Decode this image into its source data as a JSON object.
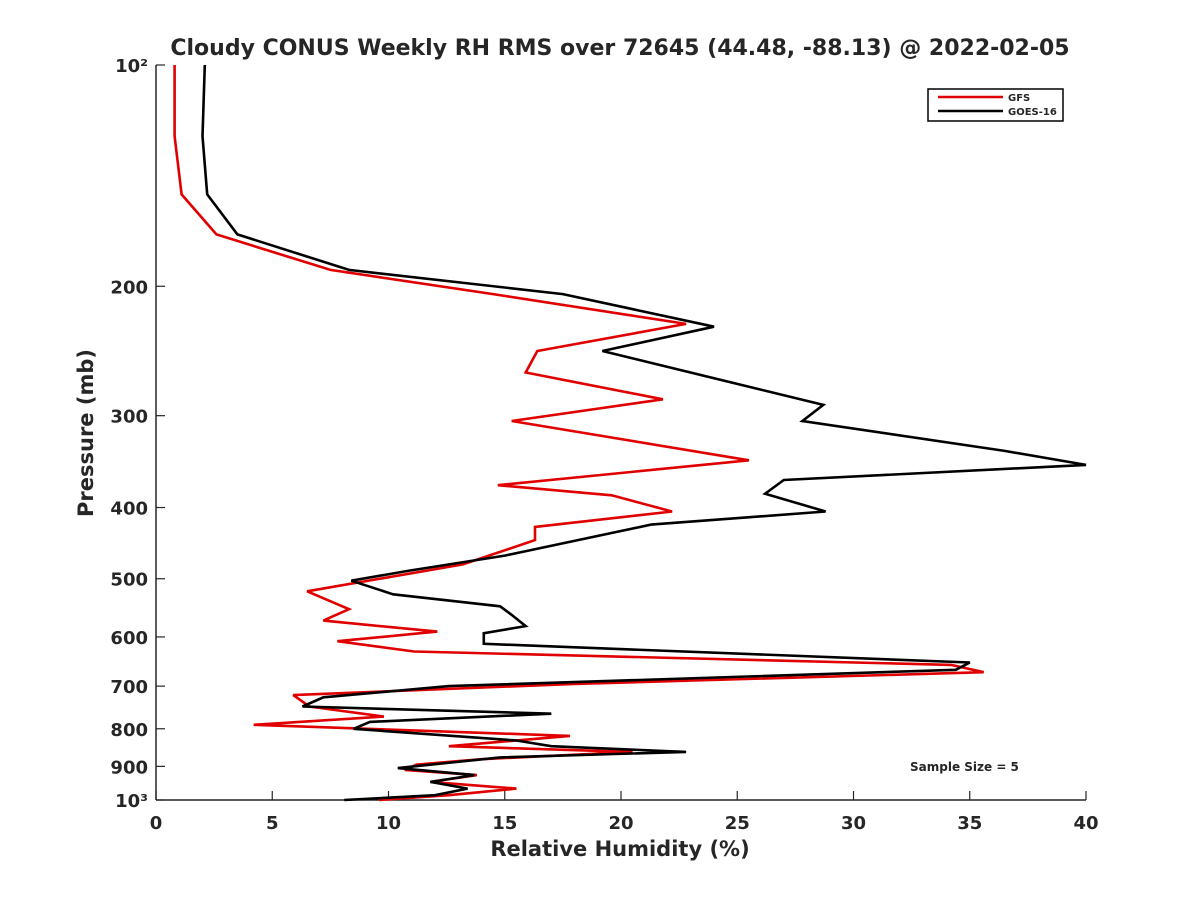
{
  "chart_data": {
    "type": "line",
    "title": "Cloudy CONUS Weekly RH RMS over 72645 (44.48, -88.13) @ 2022-02-05",
    "xlabel": "Relative Humidity (%)",
    "ylabel": "Pressure (mb)",
    "xlim": [
      0,
      40
    ],
    "ylim": [
      100,
      1000
    ],
    "y_scale": "log",
    "y_reversed": true,
    "x_ticks": [
      0,
      5,
      10,
      15,
      20,
      25,
      30,
      35,
      40
    ],
    "x_tick_labels": [
      "0",
      "5",
      "10",
      "15",
      "20",
      "25",
      "30",
      "35",
      "40"
    ],
    "y_ticks": [
      100,
      200,
      300,
      400,
      500,
      600,
      700,
      800,
      900,
      1000
    ],
    "y_tick_labels": [
      "10²",
      "200",
      "300",
      "400",
      "500",
      "600",
      "700",
      "800",
      "900",
      "10³"
    ],
    "grid": false,
    "legend_position": "top-right",
    "annotation": "Sample Size = 5",
    "series": [
      {
        "name": "GFS",
        "color": "#e00000",
        "points": [
          [
            0.8,
            100
          ],
          [
            0.8,
            125
          ],
          [
            1.1,
            150
          ],
          [
            2.6,
            170
          ],
          [
            7.5,
            190
          ],
          [
            14.5,
            205
          ],
          [
            22.8,
            225
          ],
          [
            16.4,
            245
          ],
          [
            15.9,
            262
          ],
          [
            21.8,
            285
          ],
          [
            15.3,
            305
          ],
          [
            25.5,
            345
          ],
          [
            14.7,
            373
          ],
          [
            19.6,
            385
          ],
          [
            22.2,
            405
          ],
          [
            16.3,
            425
          ],
          [
            16.3,
            443
          ],
          [
            13.2,
            478
          ],
          [
            6.5,
            520
          ],
          [
            8.3,
            550
          ],
          [
            7.2,
            570
          ],
          [
            12.1,
            590
          ],
          [
            7.8,
            608
          ],
          [
            11.1,
            628
          ],
          [
            34.2,
            655
          ],
          [
            35.6,
            670
          ],
          [
            18.0,
            695
          ],
          [
            5.9,
            720
          ],
          [
            6.6,
            746
          ],
          [
            9.8,
            770
          ],
          [
            4.2,
            790
          ],
          [
            17.8,
            818
          ],
          [
            12.6,
            845
          ],
          [
            20.5,
            860
          ],
          [
            14.0,
            880
          ],
          [
            11.2,
            895
          ],
          [
            10.7,
            910
          ],
          [
            13.8,
            925
          ],
          [
            11.8,
            945
          ],
          [
            15.5,
            965
          ],
          [
            12.6,
            985
          ],
          [
            9.6,
            1000
          ]
        ]
      },
      {
        "name": "GOES-16",
        "color": "#000000",
        "points": [
          [
            2.1,
            100
          ],
          [
            2.0,
            125
          ],
          [
            2.2,
            150
          ],
          [
            3.5,
            170
          ],
          [
            8.3,
            190
          ],
          [
            17.5,
            205
          ],
          [
            24.0,
            227
          ],
          [
            19.2,
            245
          ],
          [
            28.7,
            290
          ],
          [
            27.8,
            305
          ],
          [
            36.5,
            335
          ],
          [
            40.0,
            350
          ],
          [
            27.0,
            367
          ],
          [
            26.2,
            383
          ],
          [
            28.8,
            405
          ],
          [
            21.3,
            422
          ],
          [
            15.0,
            465
          ],
          [
            10.8,
            488
          ],
          [
            8.4,
            503
          ],
          [
            10.2,
            525
          ],
          [
            14.8,
            545
          ],
          [
            15.3,
            560
          ],
          [
            15.9,
            580
          ],
          [
            14.1,
            593
          ],
          [
            14.1,
            613
          ],
          [
            35.0,
            650
          ],
          [
            34.4,
            665
          ],
          [
            12.6,
            700
          ],
          [
            7.2,
            725
          ],
          [
            6.3,
            746
          ],
          [
            17.0,
            763
          ],
          [
            9.2,
            783
          ],
          [
            8.5,
            800
          ],
          [
            15.5,
            830
          ],
          [
            17.0,
            845
          ],
          [
            22.8,
            860
          ],
          [
            14.8,
            875
          ],
          [
            10.4,
            905
          ],
          [
            13.7,
            925
          ],
          [
            11.8,
            945
          ],
          [
            13.4,
            965
          ],
          [
            12.0,
            985
          ],
          [
            8.1,
            1000
          ]
        ]
      }
    ]
  }
}
